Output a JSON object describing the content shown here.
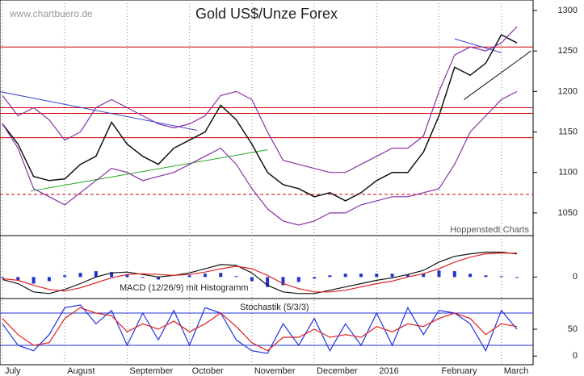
{
  "chart_data": [
    {
      "type": "line",
      "title": "Gold US$/Unze Forex",
      "subtitle": "www.chartbuero.de",
      "annotation": "Hoppenstedt Charts",
      "categories": [
        "July",
        null,
        null,
        null,
        "August",
        null,
        null,
        null,
        "September",
        null,
        null,
        null,
        "October",
        null,
        null,
        null,
        "November",
        null,
        null,
        null,
        "December",
        null,
        null,
        null,
        "2016",
        null,
        null,
        null,
        "February",
        null,
        null,
        null,
        "March",
        null
      ],
      "series": [
        {
          "color": "#111111",
          "values": [
            1160,
            1135,
            1095,
            1090,
            1092,
            1110,
            1120,
            1162,
            1135,
            1120,
            1110,
            1130,
            1140,
            1150,
            1183,
            1165,
            1135,
            1100,
            1085,
            1080,
            1070,
            1075,
            1065,
            1075,
            1090,
            1100,
            1100,
            1125,
            1170,
            1230,
            1220,
            1235,
            1270,
            1260
          ]
        },
        {
          "color": "#8833aa",
          "values": [
            1195,
            1170,
            1180,
            1165,
            1140,
            1150,
            1180,
            1190,
            1180,
            1170,
            1160,
            1155,
            1160,
            1170,
            1195,
            1200,
            1190,
            1150,
            1115,
            1110,
            1105,
            1100,
            1100,
            1110,
            1120,
            1130,
            1130,
            1145,
            1200,
            1245,
            1255,
            1250,
            1260,
            1280
          ]
        },
        {
          "color": "#8833aa",
          "values": [
            1160,
            1130,
            1080,
            1070,
            1060,
            1075,
            1090,
            1105,
            1100,
            1090,
            1095,
            1100,
            1110,
            1120,
            1130,
            1110,
            1080,
            1055,
            1040,
            1035,
            1040,
            1050,
            1050,
            1060,
            1065,
            1070,
            1070,
            1075,
            1080,
            1110,
            1150,
            1170,
            1190,
            1200
          ]
        }
      ],
      "levels": [
        {
          "value": 1255,
          "color": "#cc0000"
        },
        {
          "value": 1180,
          "color": "#cc0000"
        },
        {
          "value": 1173,
          "color": "#cc0000"
        },
        {
          "value": 1143,
          "color": "#cc0000"
        },
        {
          "value": 1073,
          "color": "#cc0000",
          "dashed": true
        }
      ],
      "trendlines": [
        {
          "x": [
            -0.2,
            12.5
          ],
          "values": [
            1200,
            1152
          ],
          "color": "#3344cc"
        },
        {
          "x": [
            1.8,
            17
          ],
          "values": [
            1077,
            1128
          ],
          "color": "#22aa22"
        },
        {
          "x": [
            29,
            32
          ],
          "values": [
            1265,
            1248
          ],
          "color": "#3344cc"
        },
        {
          "x": [
            29.6,
            33.9
          ],
          "values": [
            1190,
            1250
          ],
          "color": "#111111"
        }
      ],
      "ylim": [
        1022,
        1313
      ],
      "yticks": [
        1050,
        1100,
        1150,
        1200,
        1250,
        1300
      ]
    },
    {
      "type": "macd",
      "title": "MACD (12/26/9) mit Histogramm",
      "series": [
        {
          "color": "#111111",
          "values": [
            -3,
            -8,
            -18,
            -20,
            -15,
            -8,
            0,
            5,
            6,
            3,
            0,
            2,
            5,
            10,
            15,
            14,
            5,
            -10,
            -18,
            -20,
            -20,
            -16,
            -12,
            -8,
            -4,
            -1,
            3,
            8,
            18,
            25,
            28,
            30,
            30,
            28
          ]
        },
        {
          "color": "#dd2222",
          "values": [
            -2,
            -4,
            -10,
            -15,
            -17,
            -13,
            -7,
            -1,
            3,
            4,
            3,
            2,
            3,
            6,
            10,
            13,
            10,
            2,
            -8,
            -14,
            -18,
            -18,
            -16,
            -12,
            -8,
            -5,
            0,
            4,
            10,
            18,
            24,
            28,
            29,
            29
          ]
        }
      ],
      "histogram": {
        "color": "#2233cc",
        "values": [
          -1,
          -4,
          -8,
          -5,
          2,
          5,
          7,
          6,
          3,
          -1,
          -3,
          0,
          2,
          4,
          5,
          1,
          -5,
          -12,
          -10,
          -6,
          -2,
          2,
          4,
          4,
          4,
          4,
          3,
          4,
          8,
          7,
          4,
          2,
          1,
          -1
        ]
      },
      "ylim": [
        -26,
        50
      ],
      "yticks": [
        0
      ]
    },
    {
      "type": "stochastic",
      "title": "Stochastik (5/3/3)",
      "series": [
        {
          "color": "#2233dd",
          "values": [
            60,
            20,
            10,
            40,
            90,
            95,
            60,
            85,
            20,
            80,
            30,
            85,
            20,
            90,
            80,
            30,
            10,
            5,
            60,
            20,
            70,
            10,
            60,
            20,
            80,
            20,
            90,
            40,
            85,
            80,
            60,
            10,
            85,
            50
          ]
        },
        {
          "color": "#dd2222",
          "values": [
            70,
            40,
            20,
            25,
            70,
            90,
            80,
            75,
            45,
            60,
            50,
            65,
            45,
            60,
            80,
            55,
            25,
            10,
            35,
            35,
            50,
            35,
            40,
            35,
            55,
            45,
            60,
            55,
            70,
            80,
            70,
            40,
            60,
            55
          ]
        }
      ],
      "levels": [
        {
          "value": 80,
          "color": "#2233dd"
        },
        {
          "value": 20,
          "color": "#2233dd"
        }
      ],
      "ylim": [
        -16,
        107
      ],
      "yticks": [
        0,
        50
      ]
    }
  ]
}
